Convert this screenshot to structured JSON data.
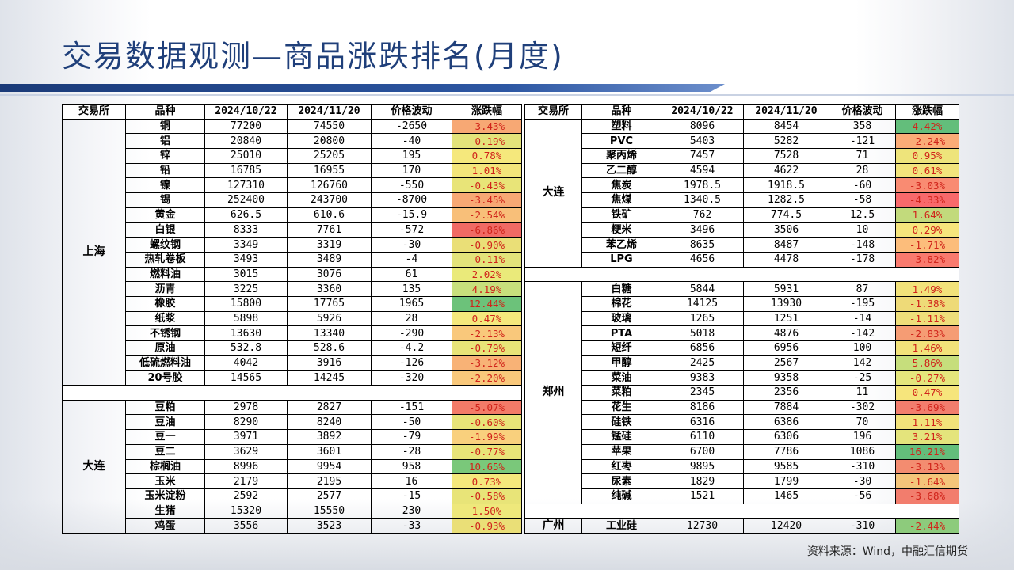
{
  "title": "交易数据观测—商品涨跌排名(月度)",
  "source": "资料来源：Wind，中融汇信期货",
  "headers": [
    "交易所",
    "品种",
    "2024/10/22",
    "2024/11/20",
    "价格波动",
    "涨跌幅"
  ],
  "left": [
    {
      "exchange": "上海",
      "rows": [
        {
          "name": "铜",
          "v1": "77200",
          "v2": "74550",
          "diff": "-2650",
          "pct": "-3.43%",
          "color": "#f7a874"
        },
        {
          "name": "铝",
          "v1": "20840",
          "v2": "20800",
          "diff": "-40",
          "pct": "-0.19%",
          "color": "#e3e37a"
        },
        {
          "name": "锌",
          "v1": "25010",
          "v2": "25205",
          "diff": "195",
          "pct": "0.78%",
          "color": "#f5e87c"
        },
        {
          "name": "铅",
          "v1": "16785",
          "v2": "16955",
          "diff": "170",
          "pct": "1.01%",
          "color": "#f3e57a"
        },
        {
          "name": "镍",
          "v1": "127310",
          "v2": "126760",
          "diff": "-550",
          "pct": "-0.43%",
          "color": "#e8e478"
        },
        {
          "name": "锡",
          "v1": "252400",
          "v2": "243700",
          "diff": "-8700",
          "pct": "-3.45%",
          "color": "#f7a874"
        },
        {
          "name": "黄金",
          "v1": "626.5",
          "v2": "610.6",
          "diff": "-15.9",
          "pct": "-2.54%",
          "color": "#f8bf79"
        },
        {
          "name": "白银",
          "v1": "8333",
          "v2": "7761",
          "diff": "-572",
          "pct": "-6.86%",
          "color": "#f06a64"
        },
        {
          "name": "螺纹钢",
          "v1": "3349",
          "v2": "3319",
          "diff": "-30",
          "pct": "-0.90%",
          "color": "#eadf77"
        },
        {
          "name": "热轧卷板",
          "v1": "3493",
          "v2": "3489",
          "diff": "-4",
          "pct": "-0.11%",
          "color": "#e3e37a"
        },
        {
          "name": "燃料油",
          "v1": "3015",
          "v2": "3076",
          "diff": "61",
          "pct": "2.02%",
          "color": "#eaea7a"
        },
        {
          "name": "沥青",
          "v1": "3225",
          "v2": "3360",
          "diff": "135",
          "pct": "4.19%",
          "color": "#c7df7c"
        },
        {
          "name": "橡胶",
          "v1": "15800",
          "v2": "17765",
          "diff": "1965",
          "pct": "12.44%",
          "color": "#6cc27a"
        },
        {
          "name": "纸浆",
          "v1": "5898",
          "v2": "5926",
          "diff": "28",
          "pct": "0.47%",
          "color": "#f5e87c"
        },
        {
          "name": "不锈钢",
          "v1": "13630",
          "v2": "13340",
          "diff": "-290",
          "pct": "-2.13%",
          "color": "#f9c87b"
        },
        {
          "name": "原油",
          "v1": "532.8",
          "v2": "528.6",
          "diff": "-4.2",
          "pct": "-0.79%",
          "color": "#e8e478"
        },
        {
          "name": "低硫燃料油",
          "v1": "4042",
          "v2": "3916",
          "diff": "-126",
          "pct": "-3.12%",
          "color": "#f8b276"
        },
        {
          "name": "20号胶",
          "v1": "14565",
          "v2": "14245",
          "diff": "-320",
          "pct": "-2.20%",
          "color": "#f9c87b"
        }
      ]
    },
    {
      "exchange": "大连",
      "rows": [
        {
          "name": "豆粕",
          "v1": "2978",
          "v2": "2827",
          "diff": "-151",
          "pct": "-5.07%",
          "color": "#f37b68"
        },
        {
          "name": "豆油",
          "v1": "8290",
          "v2": "8240",
          "diff": "-50",
          "pct": "-0.60%",
          "color": "#e8e478"
        },
        {
          "name": "豆一",
          "v1": "3971",
          "v2": "3892",
          "diff": "-79",
          "pct": "-1.99%",
          "color": "#f9d07d"
        },
        {
          "name": "豆二",
          "v1": "3629",
          "v2": "3601",
          "diff": "-28",
          "pct": "-0.77%",
          "color": "#e8e478"
        },
        {
          "name": "棕榈油",
          "v1": "8996",
          "v2": "9954",
          "diff": "958",
          "pct": "10.65%",
          "color": "#7ac87a"
        },
        {
          "name": "玉米",
          "v1": "2179",
          "v2": "2195",
          "diff": "16",
          "pct": "0.73%",
          "color": "#f5e87c"
        },
        {
          "name": "玉米淀粉",
          "v1": "2592",
          "v2": "2577",
          "diff": "-15",
          "pct": "-0.58%",
          "color": "#e8e478"
        },
        {
          "name": "生猪",
          "v1": "15320",
          "v2": "15550",
          "diff": "230",
          "pct": "1.50%",
          "color": "#eee87b"
        },
        {
          "name": "鸡蛋",
          "v1": "3556",
          "v2": "3523",
          "diff": "-33",
          "pct": "-0.93%",
          "color": "#eadf77"
        }
      ]
    }
  ],
  "right": [
    {
      "exchange": "大连",
      "rows": [
        {
          "name": "塑料",
          "v1": "8096",
          "v2": "8454",
          "diff": "358",
          "pct": "4.42%",
          "color": "#63be7b"
        },
        {
          "name": "PVC",
          "v1": "5403",
          "v2": "5282",
          "diff": "-121",
          "pct": "-2.24%",
          "color": "#fbac77"
        },
        {
          "name": "聚丙烯",
          "v1": "7457",
          "v2": "7528",
          "diff": "71",
          "pct": "0.95%",
          "color": "#eee47b"
        },
        {
          "name": "乙二醇",
          "v1": "4594",
          "v2": "4622",
          "diff": "28",
          "pct": "0.61%",
          "color": "#f2e47c"
        },
        {
          "name": "焦炭",
          "v1": "1978.5",
          "v2": "1918.5",
          "diff": "-60",
          "pct": "-3.03%",
          "color": "#f98b72"
        },
        {
          "name": "焦煤",
          "v1": "1340.5",
          "v2": "1282.5",
          "diff": "-58",
          "pct": "-4.33%",
          "color": "#f8696b"
        },
        {
          "name": "铁矿",
          "v1": "762",
          "v2": "774.5",
          "diff": "12.5",
          "pct": "1.64%",
          "color": "#c2da7c"
        },
        {
          "name": "粳米",
          "v1": "3496",
          "v2": "3506",
          "diff": "10",
          "pct": "0.29%",
          "color": "#f6e57c"
        },
        {
          "name": "苯乙烯",
          "v1": "8635",
          "v2": "8487",
          "diff": "-148",
          "pct": "-1.71%",
          "color": "#fcbd7b"
        },
        {
          "name": "LPG",
          "v1": "4656",
          "v2": "4478",
          "diff": "-178",
          "pct": "-3.82%",
          "color": "#f97a6e"
        }
      ]
    },
    {
      "exchange": "郑州",
      "rows": [
        {
          "name": "白糖",
          "v1": "5844",
          "v2": "5931",
          "diff": "87",
          "pct": "1.49%",
          "color": "#f2e27a"
        },
        {
          "name": "棉花",
          "v1": "14125",
          "v2": "13930",
          "diff": "-195",
          "pct": "-1.38%",
          "color": "#eeda78"
        },
        {
          "name": "玻璃",
          "v1": "1265",
          "v2": "1251",
          "diff": "-14",
          "pct": "-1.11%",
          "color": "#eede7a"
        },
        {
          "name": "PTA",
          "v1": "5018",
          "v2": "4876",
          "diff": "-142",
          "pct": "-2.83%",
          "color": "#f59c74"
        },
        {
          "name": "短纤",
          "v1": "6856",
          "v2": "6956",
          "diff": "100",
          "pct": "1.46%",
          "color": "#f2e27a"
        },
        {
          "name": "甲醇",
          "v1": "2425",
          "v2": "2567",
          "diff": "142",
          "pct": "5.86%",
          "color": "#c6de7c"
        },
        {
          "name": "菜油",
          "v1": "9383",
          "v2": "9358",
          "diff": "-25",
          "pct": "-0.27%",
          "color": "#e5e67c"
        },
        {
          "name": "菜粕",
          "v1": "2345",
          "v2": "2356",
          "diff": "11",
          "pct": "0.47%",
          "color": "#f6e57c"
        },
        {
          "name": "花生",
          "v1": "8186",
          "v2": "7884",
          "diff": "-302",
          "pct": "-3.69%",
          "color": "#f27d6d"
        },
        {
          "name": "硅铁",
          "v1": "6316",
          "v2": "6386",
          "diff": "70",
          "pct": "1.11%",
          "color": "#f2e27a"
        },
        {
          "name": "锰硅",
          "v1": "6110",
          "v2": "6306",
          "diff": "196",
          "pct": "3.21%",
          "color": "#e4e47c"
        },
        {
          "name": "苹果",
          "v1": "6700",
          "v2": "7786",
          "diff": "1086",
          "pct": "16.21%",
          "color": "#63be7b"
        },
        {
          "name": "红枣",
          "v1": "9895",
          "v2": "9585",
          "diff": "-310",
          "pct": "-3.13%",
          "color": "#f38c70"
        },
        {
          "name": "尿素",
          "v1": "1829",
          "v2": "1799",
          "diff": "-30",
          "pct": "-1.64%",
          "color": "#f4c57a"
        },
        {
          "name": "纯碱",
          "v1": "1521",
          "v2": "1465",
          "diff": "-56",
          "pct": "-3.68%",
          "color": "#f27d6d"
        }
      ]
    },
    {
      "exchange": "广州",
      "rows": [
        {
          "name": "工业硅",
          "v1": "12730",
          "v2": "12420",
          "diff": "-310",
          "pct": "-2.44%",
          "color": "#8dcb7c"
        }
      ]
    }
  ]
}
